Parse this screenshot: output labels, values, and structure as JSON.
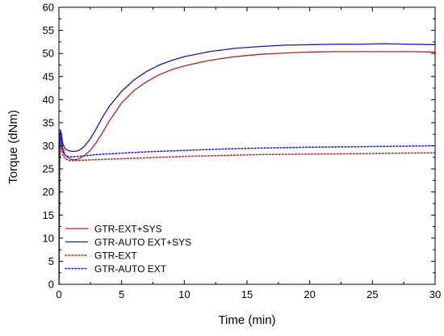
{
  "chart_data": {
    "type": "line",
    "title": "",
    "xlabel": "Time (min)",
    "ylabel": "Torque (dNm)",
    "xlim": [
      0,
      30
    ],
    "ylim": [
      0,
      60
    ],
    "xticks": [
      0,
      5,
      10,
      15,
      20,
      25,
      30
    ],
    "yticks": [
      0,
      5,
      10,
      15,
      20,
      25,
      30,
      35,
      40,
      45,
      50,
      55,
      60
    ],
    "grid": false,
    "legend_position": "bottom-left",
    "series": [
      {
        "name": "GTR-EXT+SYS",
        "color": "#b22222",
        "style": "solid",
        "x": [
          0,
          0.05,
          0.1,
          0.2,
          0.3,
          0.5,
          0.8,
          1.0,
          1.3,
          1.6,
          2.0,
          2.5,
          3.0,
          3.5,
          4.0,
          5.0,
          6.0,
          7.0,
          8.0,
          9.0,
          10.0,
          12.0,
          14.0,
          16.0,
          18.0,
          20.0,
          22.0,
          24.0,
          26.0,
          28.0,
          30.0
        ],
        "y": [
          0,
          26.0,
          32.0,
          31.5,
          29.5,
          28.0,
          27.3,
          27.0,
          27.0,
          27.2,
          27.8,
          29.0,
          30.8,
          33.0,
          35.3,
          39.3,
          42.0,
          43.9,
          45.4,
          46.5,
          47.3,
          48.5,
          49.3,
          49.8,
          50.1,
          50.3,
          50.4,
          50.4,
          50.4,
          50.4,
          50.3
        ]
      },
      {
        "name": "GTR-AUTO EXT+SYS",
        "color": "#1414c8",
        "style": "solid",
        "x": [
          0,
          0.05,
          0.1,
          0.2,
          0.3,
          0.5,
          0.8,
          1.0,
          1.3,
          1.6,
          2.0,
          2.5,
          3.0,
          3.5,
          4.0,
          5.0,
          6.0,
          7.0,
          8.0,
          9.0,
          10.0,
          12.0,
          14.0,
          16.0,
          18.0,
          20.0,
          22.0,
          24.0,
          26.0,
          28.0,
          30.0
        ],
        "y": [
          0,
          27.0,
          33.5,
          32.5,
          30.5,
          29.3,
          28.9,
          28.8,
          28.8,
          29.0,
          29.8,
          31.5,
          33.8,
          36.3,
          38.5,
          41.8,
          44.3,
          46.1,
          47.5,
          48.5,
          49.3,
          50.4,
          51.1,
          51.5,
          51.8,
          51.9,
          52.0,
          52.0,
          52.1,
          52.0,
          51.9
        ]
      },
      {
        "name": "GTR-EXT",
        "color": "#d02020",
        "style": "dotted",
        "x": [
          0,
          0.05,
          0.1,
          0.2,
          0.3,
          0.5,
          0.8,
          1.0,
          1.5,
          2.0,
          3.0,
          5.0,
          7.0,
          10.0,
          13.0,
          16.0,
          20.0,
          24.0,
          27.0,
          30.0
        ],
        "y": [
          0,
          26.0,
          30.5,
          29.5,
          28.0,
          27.2,
          26.8,
          26.8,
          26.8,
          26.9,
          27.0,
          27.2,
          27.4,
          27.7,
          27.9,
          28.1,
          28.2,
          28.3,
          28.4,
          28.5
        ]
      },
      {
        "name": "GTR-AUTO EXT",
        "color": "#2020c0",
        "style": "dotted",
        "x": [
          0,
          0.05,
          0.1,
          0.2,
          0.3,
          0.5,
          0.8,
          1.0,
          1.5,
          2.0,
          3.0,
          5.0,
          7.0,
          10.0,
          13.0,
          16.0,
          20.0,
          24.0,
          27.0,
          30.0
        ],
        "y": [
          0,
          27.0,
          32.5,
          30.5,
          28.8,
          27.9,
          27.6,
          27.6,
          27.7,
          27.8,
          28.1,
          28.4,
          28.7,
          29.0,
          29.3,
          29.5,
          29.7,
          29.8,
          29.9,
          30.0
        ]
      }
    ]
  }
}
